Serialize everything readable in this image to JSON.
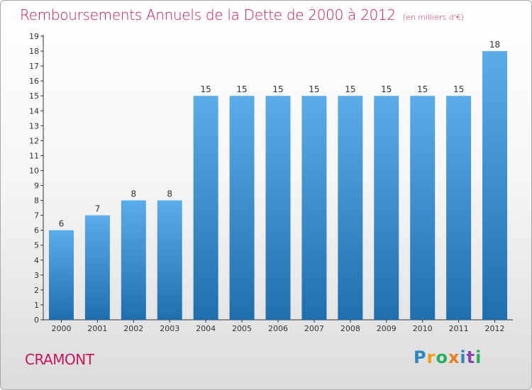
{
  "chart_data": {
    "type": "bar",
    "title": "Remboursements Annuels de la Dette de 2000 à 2012",
    "unit": "(en milliers d'€)",
    "categories": [
      "2000",
      "2001",
      "2002",
      "2003",
      "2004",
      "2005",
      "2006",
      "2007",
      "2008",
      "2009",
      "2010",
      "2011",
      "2012"
    ],
    "values": [
      6,
      7,
      8,
      8,
      15,
      15,
      15,
      15,
      15,
      15,
      15,
      15,
      18
    ],
    "ylim": [
      0,
      19
    ],
    "yticks": [
      0,
      1,
      2,
      3,
      4,
      5,
      6,
      7,
      8,
      9,
      10,
      11,
      12,
      13,
      14,
      15,
      16,
      17,
      18,
      19
    ],
    "grid": false,
    "bar_color_top": "#5aade8",
    "bar_color_bottom": "#1f6fae"
  },
  "footer": {
    "place_name": "CRAMONT",
    "logo_letters": [
      {
        "ch": "P",
        "color": "#2e86c1"
      },
      {
        "ch": "r",
        "color": "#f39c12"
      },
      {
        "ch": "o",
        "color": "#27ae60"
      },
      {
        "ch": "x",
        "color": "#e67e22"
      },
      {
        "ch": "i",
        "color": "#2e86c1"
      },
      {
        "ch": "t",
        "color": "#8e44ad"
      },
      {
        "ch": "i",
        "color": "#27ae60"
      }
    ]
  },
  "colors": {
    "title": "#c2185b",
    "axis": "#333333"
  }
}
